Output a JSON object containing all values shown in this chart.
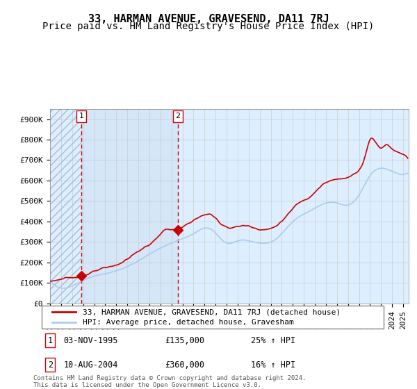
{
  "title": "33, HARMAN AVENUE, GRAVESEND, DA11 7RJ",
  "subtitle": "Price paid vs. HM Land Registry's House Price Index (HPI)",
  "xlabel": "",
  "ylabel": "",
  "ylim": [
    0,
    950000
  ],
  "yticks": [
    0,
    100000,
    200000,
    300000,
    400000,
    500000,
    600000,
    700000,
    800000,
    900000
  ],
  "ytick_labels": [
    "£0",
    "£100K",
    "£200K",
    "£300K",
    "£400K",
    "£500K",
    "£600K",
    "£700K",
    "£800K",
    "£900K"
  ],
  "xlim_start": 1993.0,
  "xlim_end": 2025.5,
  "hpi_color": "#aaccee",
  "price_color": "#cc0000",
  "background_color": "#ffffff",
  "plot_bg_color": "#ddeeff",
  "hatch_color": "#bbccdd",
  "grid_color": "#cccccc",
  "transaction1_date": 1995.84,
  "transaction1_price": 135000,
  "transaction1_label": "1",
  "transaction2_date": 2004.6,
  "transaction2_price": 360000,
  "transaction2_label": "2",
  "legend_line1": "33, HARMAN AVENUE, GRAVESEND, DA11 7RJ (detached house)",
  "legend_line2": "HPI: Average price, detached house, Gravesham",
  "table_row1": [
    "1",
    "03-NOV-1995",
    "£135,000",
    "25% ↑ HPI"
  ],
  "table_row2": [
    "2",
    "10-AUG-2004",
    "£360,000",
    "16% ↑ HPI"
  ],
  "footnote": "Contains HM Land Registry data © Crown copyright and database right 2024.\nThis data is licensed under the Open Government Licence v3.0.",
  "title_fontsize": 11,
  "subtitle_fontsize": 10,
  "tick_fontsize": 8,
  "legend_fontsize": 8.5
}
